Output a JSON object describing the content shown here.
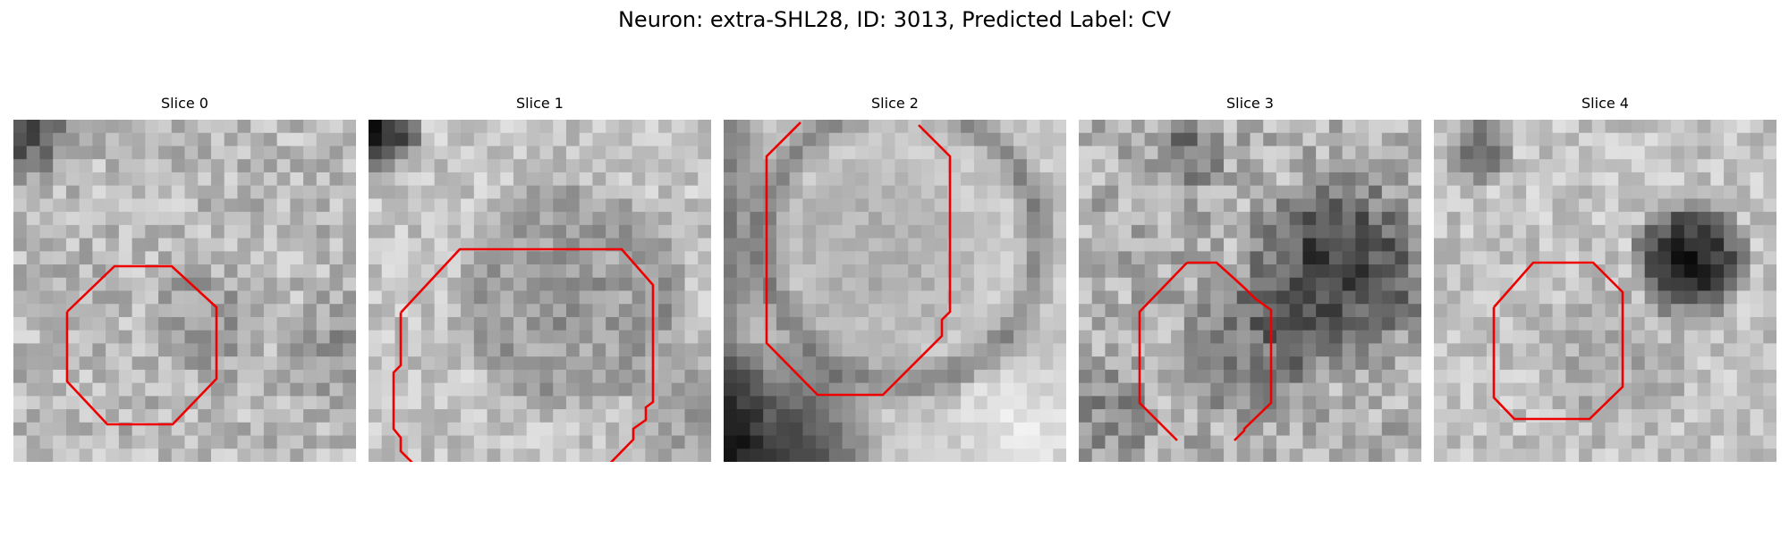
{
  "figure": {
    "title": "Neuron: extra-SHL28, ID: 3013, Predicted Label: CV",
    "outline_color": "#ee0000"
  },
  "slices": [
    {
      "title": "Slice 0"
    },
    {
      "title": "Slice 1"
    },
    {
      "title": "Slice 2"
    },
    {
      "title": "Slice 3"
    },
    {
      "title": "Slice 4"
    }
  ]
}
